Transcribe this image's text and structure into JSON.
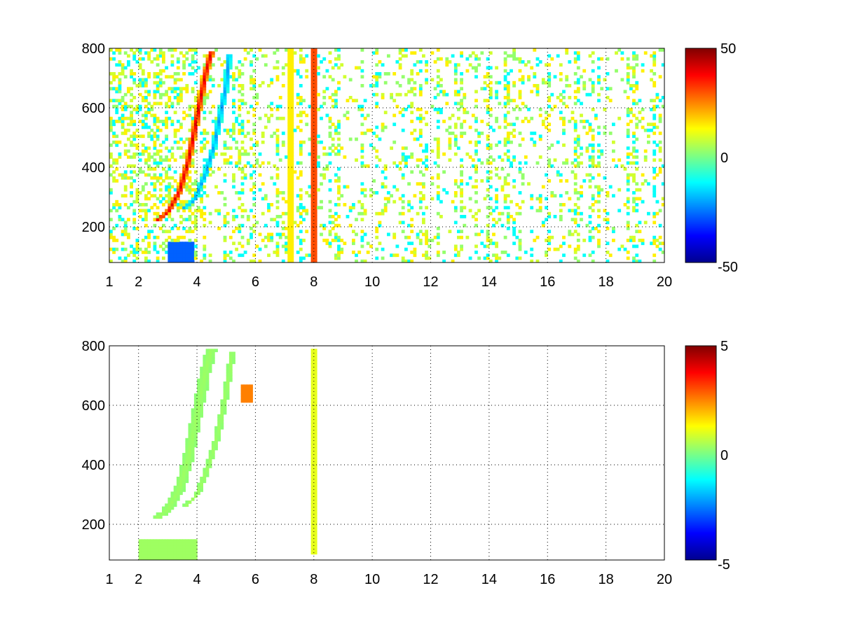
{
  "colormap": {
    "name": "jet",
    "stops": [
      "#00008f",
      "#0000ff",
      "#00ffff",
      "#80ff80",
      "#ffff00",
      "#ff0000",
      "#800000"
    ]
  },
  "chart_data": [
    {
      "type": "heatmap",
      "title": "",
      "xlabel": "",
      "ylabel": "",
      "xlim": [
        1,
        20
      ],
      "ylim": [
        80,
        800
      ],
      "x_ticks": [
        1,
        2,
        4,
        6,
        8,
        10,
        12,
        14,
        16,
        18,
        20
      ],
      "y_ticks": [
        200,
        400,
        600,
        800
      ],
      "grid": true,
      "colorbar": {
        "min": -50,
        "max": 50,
        "ticks": [
          50,
          0,
          -50
        ]
      },
      "features": [
        {
          "label": "positive ridge",
          "points": [
            [
              2.6,
              220
            ],
            [
              3.0,
              250
            ],
            [
              3.4,
              320
            ],
            [
              3.7,
              420
            ],
            [
              3.9,
              520
            ],
            [
              4.1,
              620
            ],
            [
              4.3,
              720
            ],
            [
              4.5,
              790
            ]
          ],
          "value": 42,
          "half_width": 0.12
        },
        {
          "label": "negative ridge",
          "points": [
            [
              3.5,
              260
            ],
            [
              3.9,
              290
            ],
            [
              4.3,
              380
            ],
            [
              4.6,
              480
            ],
            [
              4.8,
              580
            ],
            [
              5.0,
              680
            ],
            [
              5.1,
              780
            ]
          ],
          "value": -22,
          "half_width": 0.1
        },
        {
          "label": "low-frequency band",
          "x_range": [
            3.0,
            3.9
          ],
          "y_range": [
            80,
            150
          ],
          "value": -28
        },
        {
          "label": "line x=8",
          "x": 8.0,
          "y_range": [
            80,
            800
          ],
          "value": 30
        },
        {
          "label": "line x=7.2",
          "x": 7.2,
          "y_range": [
            80,
            800
          ],
          "value": 14
        }
      ],
      "background_noise_values": [
        -12,
        2,
        8,
        14
      ]
    },
    {
      "type": "heatmap",
      "title": "",
      "xlabel": "",
      "ylabel": "",
      "xlim": [
        1,
        20
      ],
      "ylim": [
        80,
        800
      ],
      "x_ticks": [
        1,
        2,
        4,
        6,
        8,
        10,
        12,
        14,
        16,
        18,
        20
      ],
      "y_ticks": [
        200,
        400,
        600,
        800
      ],
      "grid": true,
      "colorbar": {
        "min": -5,
        "max": 5,
        "ticks": [
          5,
          0,
          -5
        ]
      },
      "features": [
        {
          "label": "ridge band",
          "points": [
            [
              2.6,
              220
            ],
            [
              3.0,
              250
            ],
            [
              3.4,
              320
            ],
            [
              3.7,
              420
            ],
            [
              3.9,
              520
            ],
            [
              4.1,
              620
            ],
            [
              4.3,
              720
            ],
            [
              4.5,
              790
            ]
          ],
          "value": 0.3,
          "half_width": 0.18
        },
        {
          "label": "second band",
          "points": [
            [
              3.6,
              260
            ],
            [
              4.0,
              300
            ],
            [
              4.4,
              400
            ],
            [
              4.7,
              500
            ],
            [
              4.9,
              600
            ],
            [
              5.1,
              700
            ],
            [
              5.2,
              780
            ]
          ],
          "value": 0.3,
          "half_width": 0.1
        },
        {
          "label": "low-frequency band",
          "x_range": [
            2.0,
            4.0
          ],
          "y_range": [
            80,
            150
          ],
          "value": 0.3
        },
        {
          "label": "line x=8",
          "x": 8.0,
          "y_range": [
            100,
            790
          ],
          "value": 1.0
        },
        {
          "label": "hotspot",
          "x": 5.7,
          "y": 640,
          "value": 2.5
        }
      ],
      "background_noise_values": []
    }
  ]
}
